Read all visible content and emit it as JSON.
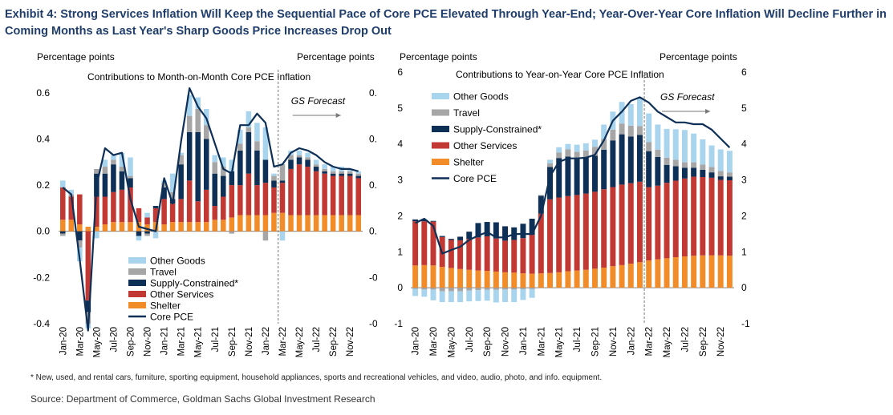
{
  "title": "Exhibit 4: Strong Services Inflation Will Keep the Sequential Pace of Core PCE Elevated Through Year-End; Year-Over-Year Core Inflation Will Decline Further in Coming Months as Last Year's Sharp Goods Price Increases Drop Out",
  "footnote": "* New, used, and rental cars, furniture, sporting equipment, household appliances, sports and recreational vehicles, and video, audio, photo, and info. equipment.",
  "source": "Source: Department of Commerce, Goldman Sachs Global Investment Research",
  "colors": {
    "other_goods": "#a9d4ee",
    "travel": "#a6a6a6",
    "supply_constrained": "#0e2f56",
    "other_services": "#c23934",
    "shelter": "#f28c28",
    "core_pce": "#0e2f56"
  },
  "chart_data": [
    {
      "type": "bar",
      "stacked": true,
      "title": "Contributions to Month-on-Month Core PCE Inflation",
      "ylabel_left": "Percentage points",
      "ylabel_right": "Percentage points",
      "ylim": [
        -0.4,
        0.7
      ],
      "yticks": [
        "0.6",
        "0.4",
        "0.2",
        "0.0",
        "-0.2",
        "-0.4"
      ],
      "forecast_label": "GS Forecast",
      "forecast_start_index": 26,
      "categories": [
        "Jan-20",
        "Feb-20",
        "Mar-20",
        "Apr-20",
        "May-20",
        "Jun-20",
        "Jul-20",
        "Aug-20",
        "Sep-20",
        "Oct-20",
        "Nov-20",
        "Dec-20",
        "Jan-21",
        "Feb-21",
        "Mar-21",
        "Apr-21",
        "May-21",
        "Jun-21",
        "Jul-21",
        "Aug-21",
        "Sep-21",
        "Oct-21",
        "Nov-21",
        "Dec-21",
        "Jan-22",
        "Feb-22",
        "Mar-22",
        "Apr-22",
        "May-22",
        "Jun-22",
        "Jul-22",
        "Aug-22",
        "Sep-22",
        "Oct-22",
        "Nov-22",
        "Dec-22"
      ],
      "tick_labels": [
        "Jan-20",
        "Mar-20",
        "May-20",
        "Jul-20",
        "Sep-20",
        "Nov-20",
        "Jan-21",
        "Mar-21",
        "May-21",
        "Jul-21",
        "Sep-21",
        "Nov-21",
        "Jan-22",
        "Mar-22",
        "May-22",
        "Jul-22",
        "Sep-22",
        "Nov-22"
      ],
      "series": [
        {
          "name": "Shelter",
          "values": [
            0.05,
            0.05,
            0.03,
            0.02,
            0.02,
            0.03,
            0.04,
            0.04,
            0.04,
            0.04,
            0.03,
            0.04,
            0.03,
            0.04,
            0.04,
            0.04,
            0.04,
            0.04,
            0.05,
            0.05,
            0.06,
            0.07,
            0.07,
            0.07,
            0.07,
            0.08,
            0.08,
            0.07,
            0.07,
            0.07,
            0.07,
            0.07,
            0.07,
            0.07,
            0.07,
            0.07
          ]
        },
        {
          "name": "Other Services",
          "values": [
            0.14,
            0.1,
            0.13,
            -0.3,
            0.13,
            0.12,
            0.13,
            0.14,
            0.15,
            0.06,
            0.03,
            0.06,
            0.11,
            0.08,
            0.1,
            0.18,
            0.09,
            0.14,
            0.06,
            0.1,
            0.14,
            0.13,
            0.18,
            0.13,
            0.14,
            0.11,
            0.13,
            0.2,
            0.22,
            0.21,
            0.19,
            0.18,
            0.17,
            0.17,
            0.17,
            0.16
          ]
        },
        {
          "name": "Supply-Constrained*",
          "values": [
            -0.01,
            0.0,
            -0.04,
            -0.05,
            0.1,
            0.1,
            0.12,
            0.08,
            0.04,
            -0.02,
            -0.01,
            0.01,
            0.05,
            0.02,
            0.15,
            0.21,
            0.3,
            0.22,
            0.14,
            0.09,
            0.06,
            0.15,
            0.18,
            0.15,
            0.1,
            0.03,
            0.01,
            0.04,
            0.03,
            0.03,
            0.02,
            0.01,
            0.01,
            0.01,
            0.01,
            0.01
          ]
        },
        {
          "name": "Travel",
          "values": [
            -0.01,
            0.01,
            -0.03,
            -0.05,
            0.02,
            0.03,
            0.02,
            0.02,
            0.01,
            0.0,
            -0.01,
            0.0,
            0.02,
            0.03,
            0.04,
            0.07,
            0.1,
            0.06,
            0.05,
            0.04,
            -0.01,
            0.03,
            0.02,
            0.04,
            -0.04,
            0.02,
            0.07,
            0.02,
            0.01,
            0.01,
            0.01,
            0.01,
            0.01,
            0.01,
            0.01,
            0.01
          ]
        },
        {
          "name": "Other Goods",
          "values": [
            0.03,
            0.02,
            -0.06,
            -0.02,
            -0.03,
            0.03,
            0.02,
            0.06,
            0.08,
            -0.02,
            0.02,
            -0.03,
            0.01,
            0.08,
            0.01,
            0.09,
            0.05,
            0.07,
            0.03,
            0.04,
            0.05,
            0.06,
            0.07,
            0.08,
            0.14,
            0.01,
            -0.04,
            0.02,
            0.02,
            0.02,
            0.02,
            0.02,
            0.02,
            0.02,
            0.01,
            0.01
          ]
        }
      ],
      "line": {
        "name": "Core PCE",
        "values": [
          0.19,
          0.16,
          -0.12,
          -0.43,
          0.2,
          0.36,
          0.33,
          0.34,
          0.14,
          0.02,
          0.01,
          0.0,
          0.23,
          0.12,
          0.39,
          0.62,
          0.54,
          0.49,
          0.38,
          0.27,
          0.25,
          0.46,
          0.46,
          0.51,
          0.47,
          0.28,
          0.29,
          0.34,
          0.36,
          0.35,
          0.33,
          0.3,
          0.28,
          0.27,
          0.27,
          0.26
        ]
      }
    },
    {
      "type": "bar",
      "stacked": true,
      "title": "Contributions to Year-on-Year  Core PCE Inflation",
      "ylabel_left": "Percentage points",
      "ylabel_right": "Percentage points",
      "ylim": [
        -1,
        6
      ],
      "yticks_left": [
        "6",
        "5",
        "4",
        "3",
        "2",
        "1",
        "0",
        "-1"
      ],
      "yticks_right": [
        "6",
        "5",
        "4",
        "3",
        "2",
        "1",
        "0",
        "-1"
      ],
      "forecast_label": "GS Forecast",
      "forecast_start_index": 26,
      "legend": [
        "Other Goods",
        "Travel",
        "Supply-Constrained*",
        "Other Services",
        "Shelter",
        "Core PCE"
      ],
      "categories": [
        "Jan-20",
        "Feb-20",
        "Mar-20",
        "Apr-20",
        "May-20",
        "Jun-20",
        "Jul-20",
        "Aug-20",
        "Sep-20",
        "Oct-20",
        "Nov-20",
        "Dec-20",
        "Jan-21",
        "Feb-21",
        "Mar-21",
        "Apr-21",
        "May-21",
        "Jun-21",
        "Jul-21",
        "Aug-21",
        "Sep-21",
        "Oct-21",
        "Nov-21",
        "Dec-21",
        "Jan-22",
        "Feb-22",
        "Mar-22",
        "Apr-22",
        "May-22",
        "Jun-22",
        "Jul-22",
        "Aug-22",
        "Sep-22",
        "Oct-22",
        "Nov-22",
        "Dec-22"
      ],
      "tick_labels": [
        "Jan-20",
        "Mar-20",
        "May-20",
        "Jul-20",
        "Sep-20",
        "Nov-20",
        "Jan-21",
        "Mar-21",
        "May-21",
        "Jul-21",
        "Sep-21",
        "Nov-21",
        "Jan-22",
        "Mar-22",
        "May-22",
        "Jul-22",
        "Sep-22",
        "Nov-22"
      ],
      "series": [
        {
          "name": "Shelter",
          "values": [
            0.62,
            0.63,
            0.62,
            0.58,
            0.55,
            0.52,
            0.5,
            0.48,
            0.47,
            0.45,
            0.43,
            0.42,
            0.4,
            0.39,
            0.4,
            0.41,
            0.43,
            0.46,
            0.48,
            0.5,
            0.53,
            0.56,
            0.6,
            0.63,
            0.67,
            0.71,
            0.76,
            0.79,
            0.82,
            0.85,
            0.87,
            0.89,
            0.9,
            0.9,
            0.9,
            0.89
          ]
        },
        {
          "name": "Other Services",
          "values": [
            1.23,
            1.22,
            1.22,
            0.83,
            0.78,
            0.8,
            0.86,
            0.92,
            0.96,
            0.92,
            0.88,
            0.91,
            0.98,
            1.08,
            1.66,
            2.05,
            2.08,
            2.09,
            2.1,
            2.12,
            2.14,
            2.18,
            2.2,
            2.24,
            2.24,
            2.24,
            2.04,
            2.05,
            2.1,
            2.13,
            2.17,
            2.2,
            2.18,
            2.16,
            2.1,
            2.1
          ]
        },
        {
          "name": "Supply-Constrained*",
          "values": [
            0.05,
            0.05,
            0.02,
            0.03,
            0.03,
            0.1,
            0.2,
            0.4,
            0.4,
            0.45,
            0.4,
            0.35,
            0.4,
            0.45,
            0.5,
            0.9,
            1.1,
            1.1,
            1.0,
            1.0,
            1.0,
            1.1,
            1.3,
            1.4,
            1.3,
            1.3,
            1.0,
            0.8,
            0.5,
            0.4,
            0.3,
            0.25,
            0.2,
            0.15,
            0.1,
            0.1
          ]
        },
        {
          "name": "Travel",
          "values": [
            -0.03,
            -0.05,
            -0.05,
            -0.1,
            -0.1,
            -0.1,
            -0.08,
            -0.07,
            -0.06,
            -0.06,
            -0.05,
            -0.05,
            -0.04,
            -0.03,
            0.02,
            0.1,
            0.15,
            0.2,
            0.2,
            0.2,
            0.25,
            0.3,
            0.3,
            0.3,
            0.3,
            0.25,
            0.25,
            0.2,
            0.2,
            0.18,
            0.15,
            0.15,
            0.15,
            0.15,
            0.15,
            0.12
          ]
        },
        {
          "name": "Other Goods",
          "values": [
            -0.2,
            -0.2,
            -0.3,
            -0.3,
            -0.3,
            -0.3,
            -0.3,
            -0.3,
            -0.3,
            -0.35,
            -0.35,
            -0.35,
            -0.3,
            -0.25,
            0.0,
            0.1,
            0.15,
            0.15,
            0.2,
            0.2,
            0.2,
            0.4,
            0.5,
            0.6,
            0.6,
            0.8,
            0.8,
            0.7,
            0.8,
            0.85,
            0.9,
            0.8,
            0.7,
            0.6,
            0.6,
            0.6
          ]
        }
      ],
      "line": {
        "name": "Core PCE",
        "values": [
          1.8,
          1.92,
          1.72,
          0.95,
          1.05,
          1.14,
          1.33,
          1.45,
          1.55,
          1.4,
          1.4,
          1.49,
          1.5,
          1.49,
          2.0,
          3.1,
          3.5,
          3.6,
          3.6,
          3.62,
          3.7,
          4.1,
          4.65,
          4.9,
          5.2,
          5.3,
          5.15,
          4.9,
          4.75,
          4.6,
          4.6,
          4.55,
          4.55,
          4.4,
          4.15,
          3.9
        ]
      }
    }
  ]
}
